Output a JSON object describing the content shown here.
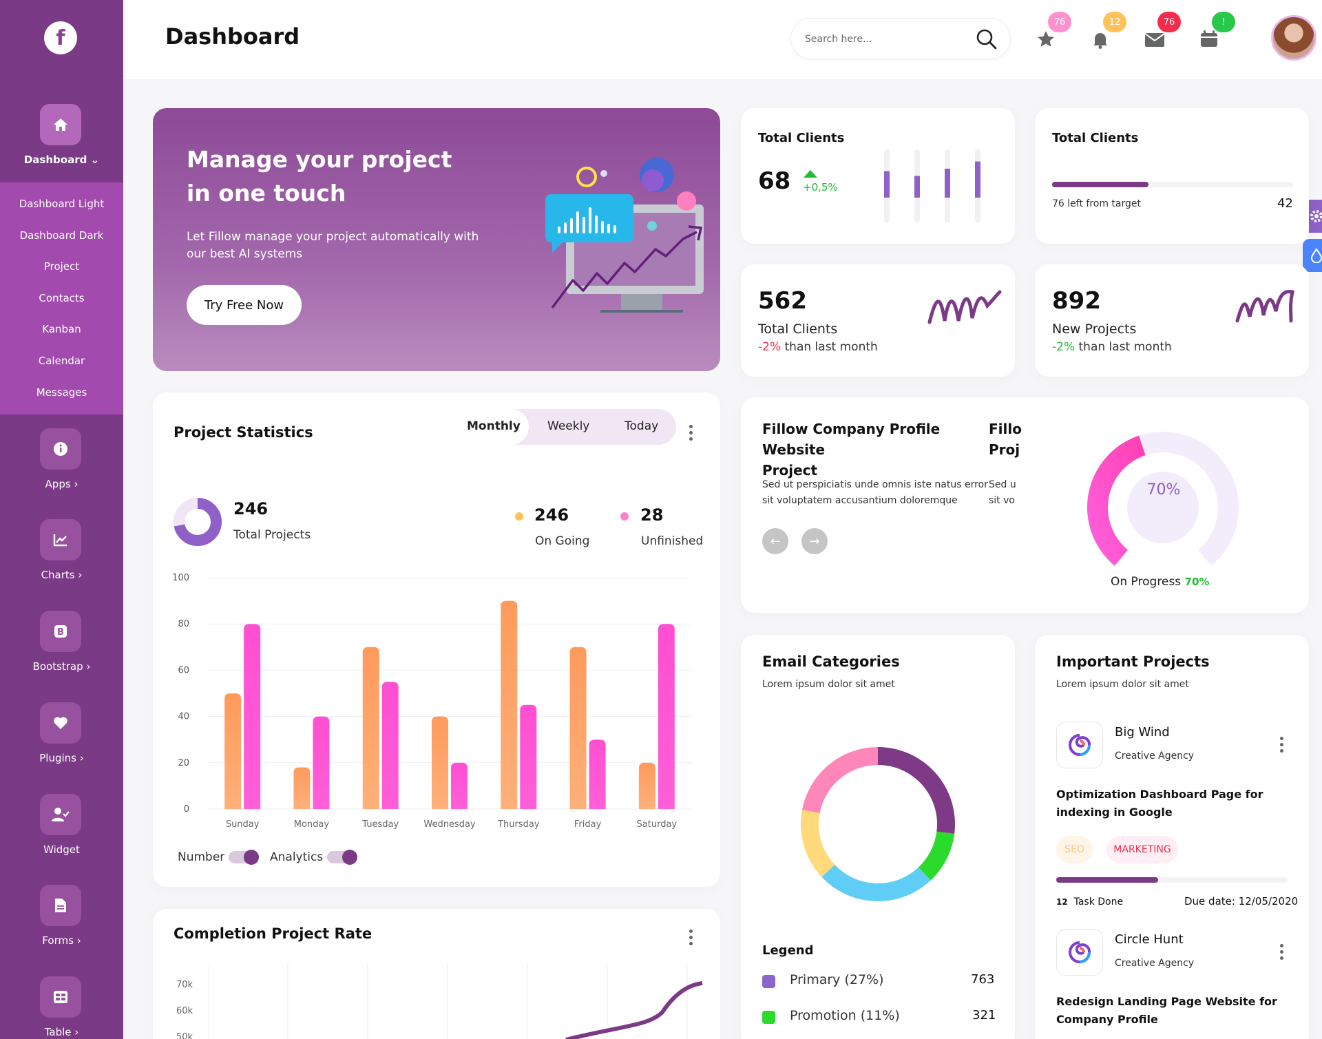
{
  "header": {
    "title": "Dashboard",
    "search_placeholder": "Search here...",
    "badges": {
      "favorites": "76",
      "notifications": "12",
      "messages": "76",
      "calendar": "!"
    }
  },
  "sidebar": {
    "logo": "f",
    "dashboard_label": "Dashboard",
    "submenu": [
      "Dashboard Light",
      "Dashboard Dark",
      "Project",
      "Contacts",
      "Kanban",
      "Calendar",
      "Messages"
    ],
    "items": [
      "Apps",
      "Charts",
      "Bootstrap",
      "Plugins",
      "Widget",
      "Forms",
      "Table"
    ]
  },
  "hero": {
    "headline": "Manage your project in one touch",
    "description": "Let Fillow manage your project automatically with our best AI systems",
    "cta": "Try Free Now"
  },
  "kpi1": {
    "title": "Total Clients",
    "value": "68",
    "change": "+0,5%",
    "bars": [
      0.55,
      0.45,
      0.6,
      0.75
    ]
  },
  "kpi2": {
    "title": "Total Clients",
    "progress": 0.4,
    "caption": "76 left from target",
    "value": "42"
  },
  "kpi3": {
    "value": "562",
    "label": "Total Clients",
    "change": "-2%",
    "suffix": "than last month"
  },
  "kpi4": {
    "value": "892",
    "label": "New Projects",
    "change": "-2%",
    "suffix": "than last month"
  },
  "project_stats": {
    "title": "Project Statistics",
    "tabs": [
      "Monthly",
      "Weekly",
      "Today"
    ],
    "total_value": "246",
    "total_label": "Total Projects",
    "ongoing_value": "246",
    "ongoing_label": "On Going",
    "unfinished_value": "28",
    "unfinished_label": "Unfinished",
    "toggle_number": "Number",
    "toggle_analytics": "Analytics"
  },
  "chart_data": {
    "type": "bar",
    "categories": [
      "Sunday",
      "Monday",
      "Tuesday",
      "Wednesday",
      "Thursday",
      "Friday",
      "Saturday"
    ],
    "series": [
      {
        "values": [
          50,
          18,
          70,
          40,
          90,
          70,
          20
        ],
        "color": "#ff9a5c"
      },
      {
        "values": [
          80,
          40,
          55,
          20,
          45,
          30,
          80
        ],
        "color": "#ff4fd1"
      }
    ],
    "yticks": [
      "100",
      "80",
      "60",
      "40",
      "20",
      "0"
    ],
    "ylim": [
      0,
      100
    ]
  },
  "profile": {
    "title_line1": "Fillow Company Profile Website",
    "title_line2": "Project",
    "body_line1": "Sed ut perspiciatis unde omnis iste natus error",
    "body_line2": "sit voluptatem accusantium doloremque",
    "peek_title1": "Fillo",
    "peek_title2": "Proj",
    "peek_body1": "Sed u",
    "peek_body2": "sit vo",
    "gauge_value": "70%",
    "gauge_fraction": 0.7,
    "progress_label": "On Progress",
    "progress_value": "70%"
  },
  "email": {
    "title": "Email Categories",
    "subtitle": "Lorem ipsum dolor sit amet",
    "segments": [
      {
        "value": 27,
        "color": "#7e3a87"
      },
      {
        "value": 11,
        "color": "#2bdb2b"
      },
      {
        "value": 25,
        "color": "#5fcdf5"
      },
      {
        "value": 15,
        "color": "#ffd97a"
      },
      {
        "value": 22,
        "color": "#ff86b8"
      }
    ],
    "legend_title": "Legend",
    "legend": [
      {
        "label": "Primary (27%)",
        "value": "763",
        "color": "#8c65c8"
      },
      {
        "label": "Promotion (11%)",
        "value": "321",
        "color": "#2bdb2b"
      }
    ]
  },
  "projects": {
    "title": "Important Projects",
    "subtitle": "Lorem ipsum dolor sit amet",
    "p1_name": "Big Wind",
    "p1_org": "Creative Agency",
    "p1_desc": "Optimization Dashboard Page for indexing in Google",
    "tag1": "SEO",
    "tag2": "MARKETING",
    "p1_progress": 0.44,
    "p1_tasks_count": "12",
    "p1_tasks_label": "Task Done",
    "p1_due": "Due date: 12/05/2020",
    "p2_name": "Circle Hunt",
    "p2_org": "Creative Agency",
    "p2_desc": "Redesign Landing Page Website for Company Profile"
  },
  "completion": {
    "title": "Completion Project Rate",
    "yticks": [
      "70k",
      "60k",
      "50k"
    ]
  }
}
